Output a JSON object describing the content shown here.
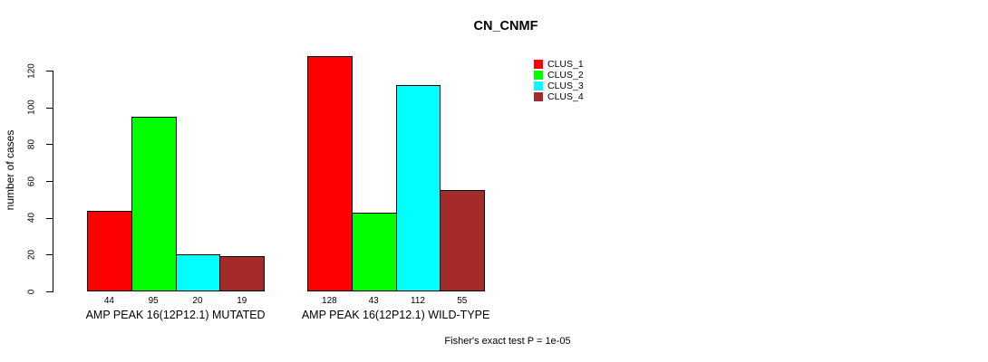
{
  "chart_data": {
    "type": "bar",
    "title": "CN_CNMF",
    "xlabel": "",
    "ylabel": "number of cases",
    "ylim": [
      0,
      120
    ],
    "yticks": [
      0,
      20,
      40,
      60,
      80,
      100,
      120
    ],
    "grid": false,
    "legend_position": "top-right",
    "categories": [
      "AMP PEAK 16(12P12.1) MUTATED",
      "AMP PEAK 16(12P12.1) WILD-TYPE"
    ],
    "series": [
      {
        "name": "CLUS_1",
        "color": "#FF0000",
        "values": [
          44,
          128
        ]
      },
      {
        "name": "CLUS_2",
        "color": "#00FF00",
        "values": [
          95,
          43
        ]
      },
      {
        "name": "CLUS_3",
        "color": "#00FFFF",
        "values": [
          20,
          112
        ]
      },
      {
        "name": "CLUS_4",
        "color": "#A52A2A",
        "values": [
          19,
          55
        ]
      }
    ],
    "bar_value_labels": true,
    "annotation": "Fisher's exact test P = 1e-05"
  }
}
